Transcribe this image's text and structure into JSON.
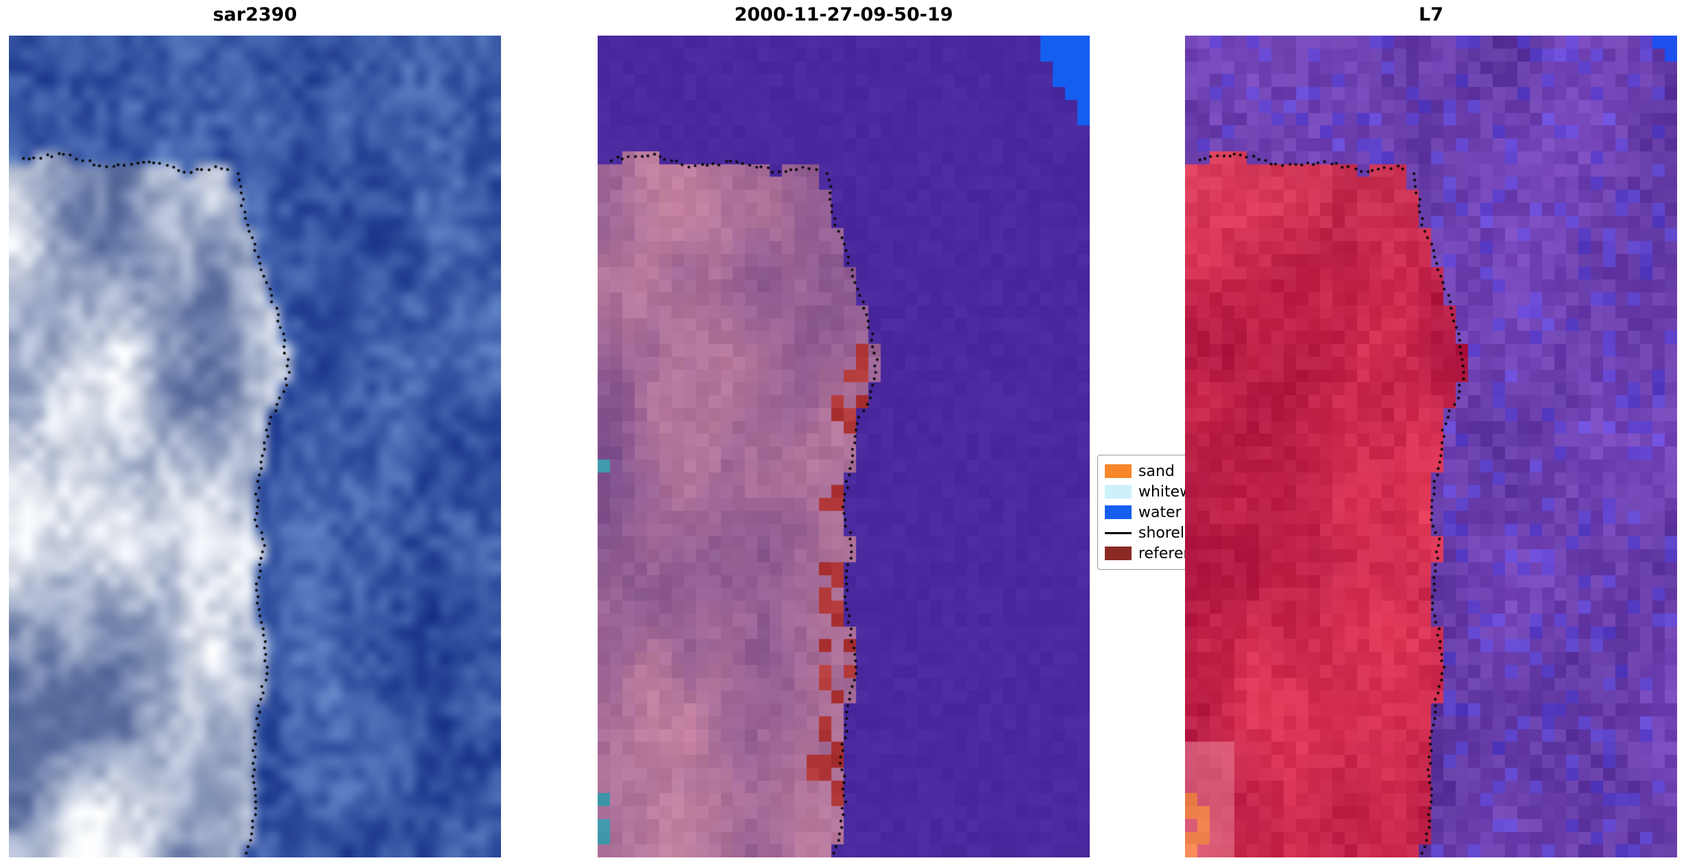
{
  "figure": {
    "background": "#ffffff",
    "panels": [
      {
        "title": "sar2390"
      },
      {
        "title": "2000-11-27-09-50-19"
      },
      {
        "title": "L7"
      }
    ],
    "legend": {
      "entries": [
        {
          "label": "sand",
          "kind": "patch",
          "color": "#f8862b"
        },
        {
          "label": "whitewater",
          "kind": "patch",
          "color": "#cdf1fb"
        },
        {
          "label": "water",
          "kind": "patch",
          "color": "#155ff0"
        },
        {
          "label": "shoreline",
          "kind": "line",
          "color": "#000000"
        },
        {
          "label": "reference",
          "kind": "patch",
          "color": "#8b2a25"
        }
      ]
    }
  },
  "chart_data": {
    "type": "heatmap",
    "title": "",
    "description": "Three-panel coastal remote sensing figure: SAR backscatter image (sar2390), classified scene dated 2000-11-27-09-50-19, and Landsat-7 false color image (L7). A dotted black shoreline is overlaid on all three panels along the eastern edge of a sandy island occupying the left half of each panel.",
    "legend_entries": [
      "sand",
      "whitewater",
      "water",
      "shoreline",
      "reference"
    ],
    "panels": [
      {
        "title": "sar2390",
        "description": "SAR composite: bright white/pale-blue island on left, speckled medium-blue water elsewhere",
        "palette": {
          "water": "#3c5ca8",
          "land_dark": "#5a6ea0",
          "land_light": "#f8fafc"
        }
      },
      {
        "title": "2000-11-27-09-50-19",
        "description": "Classified scene: flat violet water, mauve-pink island, dark-red reference shoreline pixels near the coast, teal whitewater pixels at left edge, bright-blue water-class staircase patch in top-right corner",
        "palette": {
          "water": "#4a2a9e",
          "land_dark": "#784b8c",
          "land_light": "#c482a0",
          "reference": "#b03737",
          "whitewater": "#3c96a8",
          "water_class": "#155ff0"
        }
      },
      {
        "title": "L7",
        "description": "Landsat-7 false color: crimson-red island, noisy purple water, small bright-blue patch top-right, orange sand pixels bottom-left",
        "palette": {
          "water_dark": "#563096",
          "water_light": "#8250c8",
          "land_dark": "#a50f3c",
          "land_light": "#e63c5a",
          "sand": "#f28450",
          "water_class": "#1e50f0",
          "shallow": "#eb8ca0"
        }
      }
    ],
    "shoreline": {
      "style": "dotted",
      "color": "#0a0a0a",
      "top_points": [
        [
          0.0,
          0.165
        ],
        [
          0.031,
          0.15
        ],
        [
          0.114,
          0.144
        ],
        [
          0.19,
          0.159
        ],
        [
          0.288,
          0.153
        ],
        [
          0.365,
          0.166
        ],
        [
          0.441,
          0.159
        ],
        [
          0.459,
          0.186
        ]
      ],
      "right_points": [
        [
          0.16,
          0.465
        ],
        [
          0.19,
          0.472
        ],
        [
          0.22,
          0.478
        ],
        [
          0.25,
          0.496
        ],
        [
          0.3,
          0.524
        ],
        [
          0.34,
          0.546
        ],
        [
          0.375,
          0.561
        ],
        [
          0.41,
          0.568
        ],
        [
          0.44,
          0.554
        ],
        [
          0.47,
          0.528
        ],
        [
          0.51,
          0.517
        ],
        [
          0.545,
          0.507
        ],
        [
          0.585,
          0.5
        ],
        [
          0.617,
          0.517
        ],
        [
          0.656,
          0.507
        ],
        [
          0.69,
          0.502
        ],
        [
          0.73,
          0.517
        ],
        [
          0.77,
          0.524
        ],
        [
          0.81,
          0.511
        ],
        [
          0.85,
          0.502
        ],
        [
          0.885,
          0.496
        ],
        [
          0.925,
          0.502
        ],
        [
          0.963,
          0.496
        ],
        [
          1.0,
          0.48
        ]
      ]
    }
  }
}
